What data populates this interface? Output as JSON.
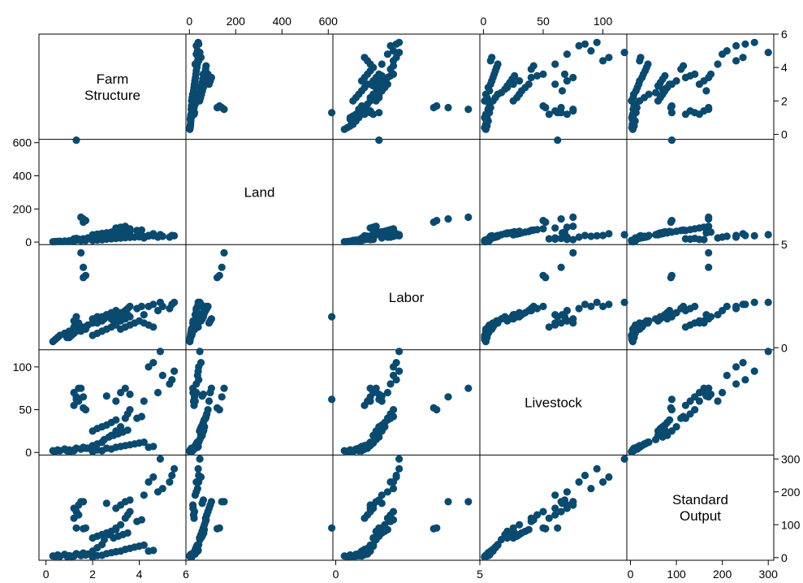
{
  "chart_data": {
    "type": "scatter",
    "kind": "scatter-matrix",
    "title": "",
    "marker_color": "#0b4a6f",
    "grid": false,
    "legend": "none",
    "variables": [
      {
        "key": "farm",
        "label_lines": [
          "Farm",
          "Structure"
        ],
        "range": [
          -0.3,
          6.0
        ],
        "ticks": [
          0,
          2,
          4,
          6
        ]
      },
      {
        "key": "land",
        "label_lines": [
          "Land"
        ],
        "range": [
          -15,
          620
        ],
        "ticks": [
          0,
          200,
          400,
          600
        ]
      },
      {
        "key": "labor",
        "label_lines": [
          "Labor"
        ],
        "range": [
          -0.1,
          5.0
        ],
        "ticks": [
          0,
          5
        ]
      },
      {
        "key": "livestock",
        "label_lines": [
          "Livestock"
        ],
        "range": [
          -3,
          120
        ],
        "ticks": [
          0,
          50,
          100
        ]
      },
      {
        "key": "output",
        "label_lines": [
          "Standard",
          "Output"
        ],
        "range": [
          -8,
          312
        ],
        "ticks": [
          0,
          100,
          200,
          300
        ]
      }
    ],
    "axes": {
      "bottom": [
        {
          "var": "farm",
          "labels": [
            "0",
            "2",
            "4",
            "6"
          ]
        },
        {
          "var": "labor",
          "labels": [
            "0",
            "5"
          ]
        },
        {
          "var": "output",
          "labels": [
            "0",
            "100",
            "200",
            "300"
          ]
        }
      ],
      "top": [
        {
          "var": "land",
          "labels": [
            "0",
            "200",
            "400",
            "600"
          ]
        },
        {
          "var": "livestock",
          "labels": [
            "0",
            "50",
            "100"
          ]
        }
      ],
      "left": [
        {
          "var": "land",
          "labels": [
            "0",
            "200",
            "400",
            "600"
          ]
        },
        {
          "var": "livestock",
          "labels": [
            "0",
            "50",
            "100"
          ]
        }
      ],
      "right": [
        {
          "var": "farm",
          "labels": [
            "0",
            "2",
            "4",
            "6"
          ]
        },
        {
          "var": "labor",
          "labels": [
            "0",
            "5"
          ]
        },
        {
          "var": "output",
          "labels": [
            "0",
            "100",
            "200",
            "300"
          ]
        }
      ]
    },
    "observations": [
      [
        0.3,
        2,
        0.3,
        2,
        5
      ],
      [
        0.4,
        3,
        0.4,
        1,
        3
      ],
      [
        0.5,
        4,
        0.5,
        3,
        8
      ],
      [
        0.6,
        5,
        0.6,
        2,
        4
      ],
      [
        0.8,
        6,
        0.7,
        4,
        10
      ],
      [
        1.0,
        8,
        0.8,
        3,
        6
      ],
      [
        1.2,
        10,
        0.9,
        2,
        5
      ],
      [
        1.3,
        12,
        0.8,
        5,
        12
      ],
      [
        1.5,
        15,
        1.0,
        4,
        9
      ],
      [
        1.6,
        20,
        1.0,
        6,
        14
      ],
      [
        1.8,
        25,
        1.1,
        5,
        11
      ],
      [
        2.0,
        30,
        1.2,
        8,
        20
      ],
      [
        2.2,
        35,
        1.2,
        10,
        30
      ],
      [
        2.4,
        40,
        1.3,
        12,
        40
      ],
      [
        2.5,
        45,
        1.4,
        15,
        55
      ],
      [
        2.7,
        50,
        1.5,
        18,
        70
      ],
      [
        2.8,
        55,
        1.4,
        20,
        80
      ],
      [
        3.0,
        60,
        1.6,
        25,
        90
      ],
      [
        3.2,
        65,
        1.7,
        30,
        100
      ],
      [
        3.4,
        70,
        1.8,
        40,
        120
      ],
      [
        3.5,
        75,
        1.9,
        45,
        130
      ],
      [
        3.6,
        80,
        2.0,
        50,
        140
      ],
      [
        3.0,
        85,
        1.2,
        60,
        150
      ],
      [
        3.2,
        90,
        1.3,
        70,
        160
      ],
      [
        3.4,
        95,
        1.4,
        75,
        170
      ],
      [
        3.6,
        60,
        1.5,
        68,
        175
      ],
      [
        2.6,
        55,
        1.6,
        66,
        165
      ],
      [
        4.4,
        40,
        2.0,
        100,
        230
      ],
      [
        4.6,
        50,
        2.1,
        105,
        245
      ],
      [
        4.9,
        45,
        2.2,
        118,
        300
      ],
      [
        5.0,
        35,
        2.0,
        90,
        210
      ],
      [
        5.3,
        30,
        1.9,
        80,
        230
      ],
      [
        5.4,
        40,
        2.1,
        85,
        250
      ],
      [
        5.5,
        38,
        2.2,
        95,
        270
      ],
      [
        4.8,
        30,
        1.8,
        70,
        200
      ],
      [
        4.2,
        25,
        1.6,
        60,
        190
      ],
      [
        1.5,
        150,
        4.6,
        75,
        170
      ],
      [
        1.6,
        140,
        3.9,
        65,
        170
      ],
      [
        1.7,
        130,
        3.5,
        50,
        90
      ],
      [
        1.6,
        120,
        3.4,
        52,
        88
      ],
      [
        1.3,
        615,
        1.5,
        62,
        90
      ],
      [
        1.2,
        20,
        1.0,
        55,
        120
      ],
      [
        1.4,
        18,
        1.1,
        60,
        130
      ],
      [
        1.3,
        22,
        1.2,
        65,
        140
      ],
      [
        1.2,
        16,
        1.3,
        70,
        150
      ],
      [
        1.4,
        15,
        1.2,
        75,
        160
      ],
      [
        2.0,
        10,
        0.6,
        1,
        2
      ],
      [
        2.2,
        12,
        0.7,
        3,
        6
      ],
      [
        2.4,
        14,
        0.8,
        2,
        7
      ],
      [
        2.6,
        18,
        0.9,
        5,
        12
      ],
      [
        2.8,
        20,
        1.0,
        4,
        15
      ],
      [
        3.0,
        22,
        1.1,
        6,
        18
      ],
      [
        3.2,
        24,
        0.9,
        7,
        20
      ],
      [
        3.4,
        26,
        1.0,
        8,
        25
      ],
      [
        3.6,
        28,
        1.1,
        9,
        28
      ],
      [
        3.8,
        30,
        1.2,
        10,
        32
      ],
      [
        4.0,
        32,
        1.3,
        11,
        35
      ],
      [
        4.2,
        34,
        1.2,
        12,
        38
      ],
      [
        4.4,
        36,
        1.1,
        6,
        20
      ],
      [
        4.6,
        38,
        1.0,
        7,
        22
      ],
      [
        2.0,
        44,
        1.4,
        25,
        60
      ],
      [
        2.2,
        48,
        1.5,
        28,
        65
      ],
      [
        2.4,
        52,
        1.5,
        30,
        70
      ],
      [
        2.6,
        56,
        1.6,
        32,
        75
      ],
      [
        2.8,
        60,
        1.7,
        35,
        80
      ],
      [
        3.0,
        64,
        1.8,
        38,
        85
      ],
      [
        1.0,
        5,
        0.5,
        1,
        3
      ],
      [
        1.1,
        6,
        0.6,
        2,
        4
      ],
      [
        1.2,
        7,
        0.7,
        3,
        5
      ],
      [
        0.9,
        4,
        0.5,
        2,
        4
      ],
      [
        1.5,
        8,
        0.8,
        4,
        6
      ],
      [
        1.7,
        9,
        0.9,
        5,
        8
      ],
      [
        3.9,
        70,
        1.9,
        40,
        110
      ],
      [
        4.1,
        72,
        2.0,
        42,
        115
      ],
      [
        2.9,
        50,
        1.3,
        20,
        60
      ],
      [
        3.1,
        55,
        1.4,
        22,
        65
      ],
      [
        3.3,
        58,
        1.5,
        24,
        70
      ],
      [
        3.5,
        62,
        1.6,
        26,
        75
      ]
    ]
  }
}
